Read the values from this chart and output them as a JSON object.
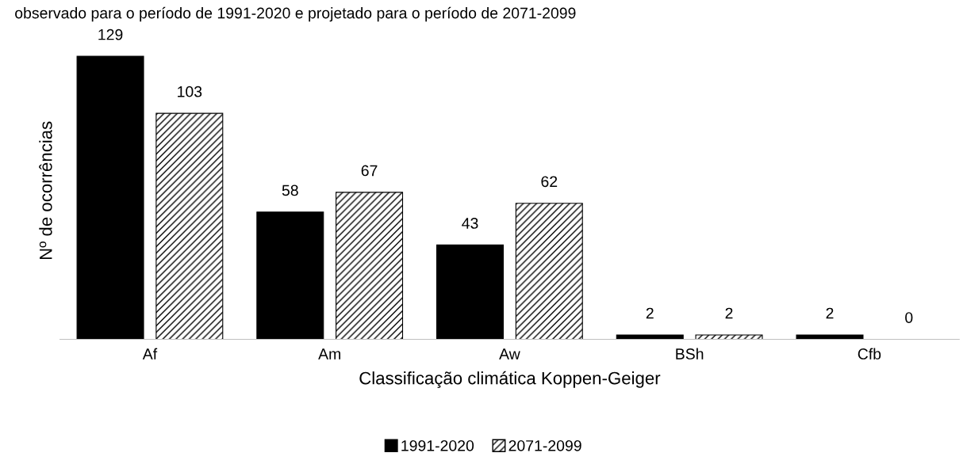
{
  "chart_data": {
    "type": "bar",
    "title": "observado para o período de 1991-2020 e projetado para o período de 2071-2099",
    "xlabel": "Classificação climática Koppen-Geiger",
    "ylabel": "Nº de ocorrências",
    "categories": [
      "Af",
      "Am",
      "Aw",
      "BSh",
      "Cfb"
    ],
    "series": [
      {
        "name": "1991-2020",
        "color": "#000000",
        "values": [
          129,
          58,
          43,
          2,
          2
        ]
      },
      {
        "name": "2071-2099",
        "color": "#000000",
        "values": [
          103,
          67,
          62,
          2,
          0
        ]
      }
    ],
    "data_labels": true,
    "legend": "bottom",
    "grid": false,
    "tick_labels": "x"
  }
}
